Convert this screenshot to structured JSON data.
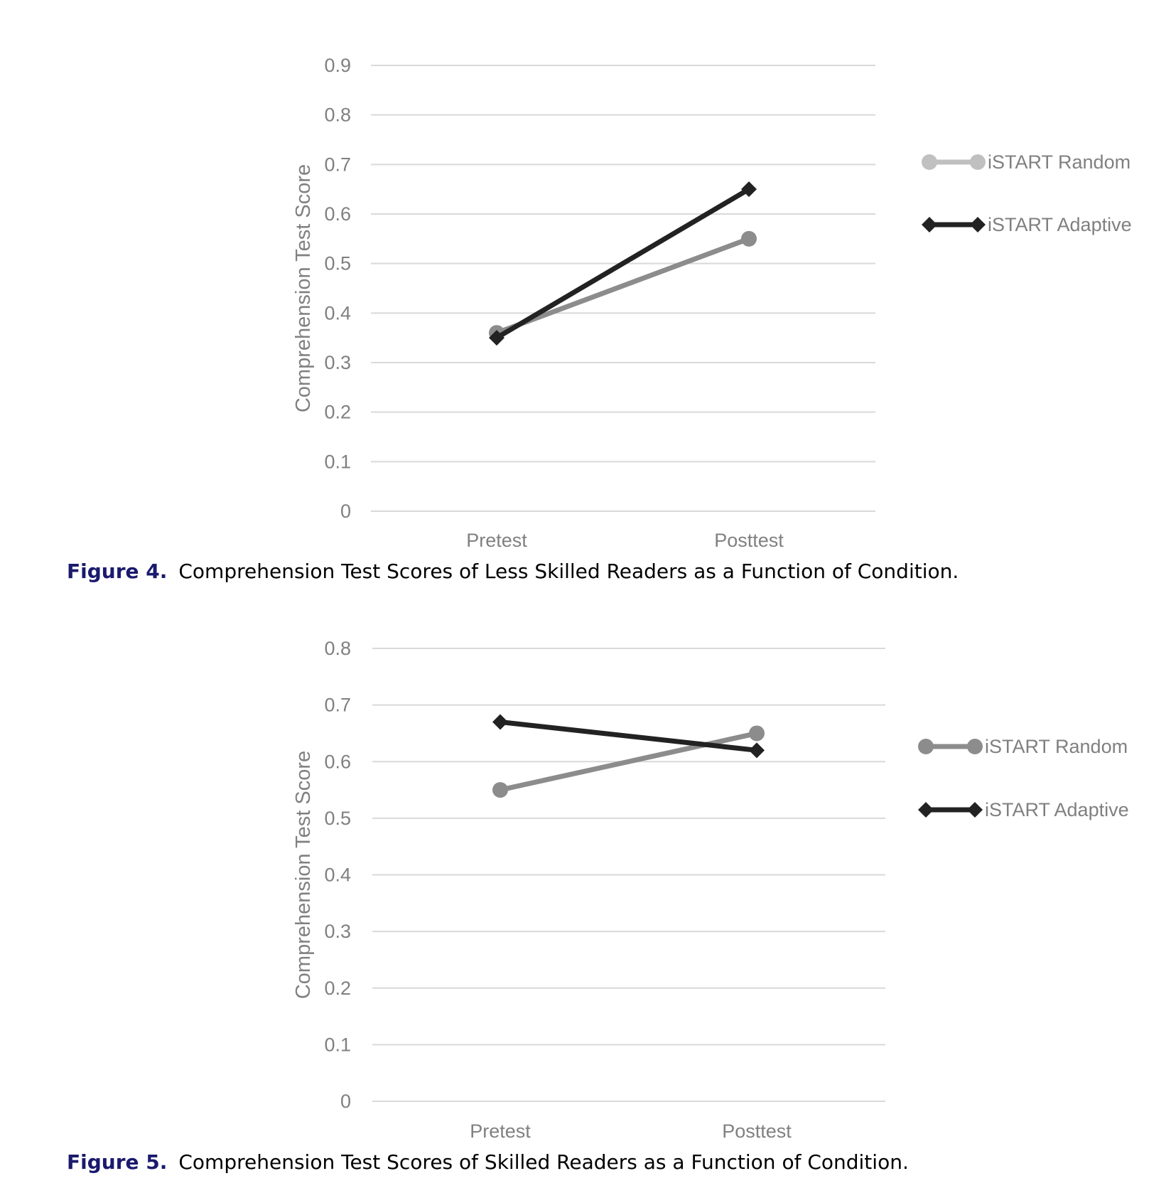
{
  "chart_data": [
    {
      "type": "line",
      "categories": [
        "Pretest",
        "Posttest"
      ],
      "ylabel": "Comprehension Test Score",
      "ylim": [
        0,
        0.9
      ],
      "yticks": [
        "0",
        "0.1",
        "0.2",
        "0.3",
        "0.4",
        "0.5",
        "0.6",
        "0.7",
        "0.8",
        "0.9"
      ],
      "grid": true,
      "legend_position": "right",
      "series": [
        {
          "name": "iSTART Random",
          "values": [
            0.36,
            0.55
          ],
          "marker": "circle",
          "color": "#8c8c8c",
          "legend_color": "#c0c0c0"
        },
        {
          "name": "iSTART Adaptive",
          "values": [
            0.35,
            0.65
          ],
          "marker": "diamond",
          "color": "#222222",
          "legend_color": "#222222"
        }
      ]
    },
    {
      "type": "line",
      "categories": [
        "Pretest",
        "Posttest"
      ],
      "ylabel": "Comprehension Test Score",
      "ylim": [
        0,
        0.8
      ],
      "yticks": [
        "0",
        "0.1",
        "0.2",
        "0.3",
        "0.4",
        "0.5",
        "0.6",
        "0.7",
        "0.8"
      ],
      "grid": true,
      "legend_position": "right",
      "series": [
        {
          "name": "iSTART Random",
          "values": [
            0.55,
            0.65
          ],
          "marker": "circle",
          "color": "#8c8c8c",
          "legend_color": "#8c8c8c"
        },
        {
          "name": "iSTART Adaptive",
          "values": [
            0.67,
            0.62
          ],
          "marker": "diamond",
          "color": "#222222",
          "legend_color": "#222222"
        }
      ]
    }
  ],
  "captions": [
    {
      "label": "Figure 4.",
      "text": "Comprehension Test Scores of Less Skilled Readers as a Function of Condition."
    },
    {
      "label": "Figure 5.",
      "text": "Comprehension Test Scores of Skilled Readers as a Function of Condition."
    }
  ]
}
